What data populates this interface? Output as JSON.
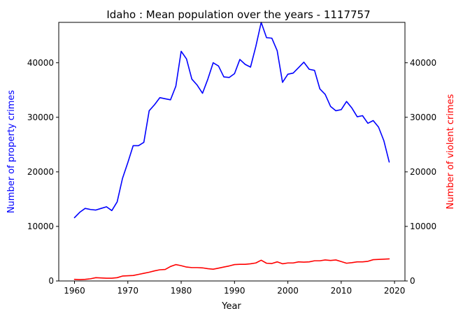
{
  "chart_data": {
    "type": "line",
    "title": "Idaho : Mean population over the years - 1117757",
    "xlabel": "Year",
    "ylabel_left": "Number of property crimes",
    "ylabel_right": "Number of violent crimes",
    "xlim": [
      1957.05,
      2021.95
    ],
    "ylim": [
      0,
      47400
    ],
    "x_ticks": [
      1960,
      1970,
      1980,
      1990,
      2000,
      2010,
      2020
    ],
    "y_ticks": [
      0,
      10000,
      20000,
      30000,
      40000
    ],
    "grid": false,
    "series": [
      {
        "color": "#0000ff",
        "axis": "left",
        "x": [
          1960,
          1961,
          1962,
          1963,
          1964,
          1965,
          1966,
          1967,
          1968,
          1969,
          1970,
          1971,
          1972,
          1973,
          1974,
          1975,
          1976,
          1977,
          1978,
          1979,
          1980,
          1981,
          1982,
          1983,
          1984,
          1985,
          1986,
          1987,
          1988,
          1989,
          1990,
          1991,
          1992,
          1993,
          1994,
          1995,
          1996,
          1997,
          1998,
          1999,
          2000,
          2001,
          2002,
          2003,
          2004,
          2005,
          2006,
          2007,
          2008,
          2009,
          2010,
          2011,
          2012,
          2013,
          2014,
          2015,
          2016,
          2017,
          2018,
          2019
        ],
        "values": [
          11600,
          12600,
          13300,
          13100,
          13000,
          13300,
          13600,
          12900,
          14500,
          18800,
          21700,
          24800,
          24800,
          25400,
          31200,
          32300,
          33600,
          33400,
          33200,
          35700,
          42100,
          40700,
          37000,
          35900,
          34400,
          37000,
          40000,
          39400,
          37400,
          37300,
          38000,
          40600,
          39700,
          39200,
          43000,
          47400,
          44600,
          44500,
          42200,
          36400,
          37900,
          38100,
          39100,
          40100,
          38800,
          38600,
          35200,
          34200,
          32000,
          31200,
          31400,
          32900,
          31700,
          30100,
          30300,
          28900,
          29400,
          28200,
          25700,
          21800
        ]
      },
      {
        "color": "#ff0000",
        "axis": "right",
        "x": [
          1960,
          1961,
          1962,
          1963,
          1964,
          1965,
          1966,
          1967,
          1968,
          1969,
          1970,
          1971,
          1972,
          1973,
          1974,
          1975,
          1976,
          1977,
          1978,
          1979,
          1980,
          1981,
          1982,
          1983,
          1984,
          1985,
          1986,
          1987,
          1988,
          1989,
          1990,
          1991,
          1992,
          1993,
          1994,
          1995,
          1996,
          1997,
          1998,
          1999,
          2000,
          2001,
          2002,
          2003,
          2004,
          2005,
          2006,
          2007,
          2008,
          2009,
          2010,
          2011,
          2012,
          2013,
          2014,
          2015,
          2016,
          2017,
          2018,
          2019
        ],
        "values": [
          300,
          250,
          300,
          400,
          600,
          550,
          500,
          500,
          600,
          900,
          950,
          1000,
          1200,
          1400,
          1600,
          1850,
          2050,
          2100,
          2650,
          3000,
          2800,
          2550,
          2450,
          2450,
          2400,
          2250,
          2150,
          2350,
          2550,
          2750,
          3000,
          3050,
          3050,
          3150,
          3300,
          3800,
          3250,
          3200,
          3500,
          3150,
          3300,
          3300,
          3500,
          3450,
          3500,
          3700,
          3700,
          3850,
          3750,
          3850,
          3550,
          3250,
          3350,
          3500,
          3500,
          3600,
          3900,
          3950,
          4000,
          4050
        ]
      }
    ]
  }
}
